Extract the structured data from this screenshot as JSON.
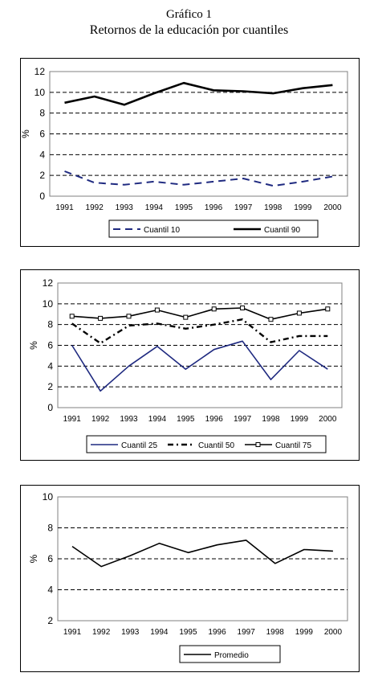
{
  "figure": {
    "label": "Gráfico 1",
    "title": "Retornos de la educación por cuantiles"
  },
  "chart_data": [
    {
      "type": "line",
      "x": [
        "1991",
        "1992",
        "1993",
        "1994",
        "1995",
        "1996",
        "1997",
        "1998",
        "1999",
        "2000"
      ],
      "ylabel": "%",
      "ylim": [
        0,
        12
      ],
      "yticks": [
        0,
        2,
        4,
        6,
        8,
        10,
        12
      ],
      "grid": "dashed horizontal",
      "legend_position": "bottom",
      "series": [
        {
          "name": "Cuantil 10",
          "style": "dashed",
          "color": "#1f2a80",
          "values": [
            2.4,
            1.3,
            1.1,
            1.4,
            1.1,
            1.4,
            1.7,
            1.0,
            1.4,
            1.9
          ]
        },
        {
          "name": "Cuantil 90",
          "style": "solid-thick",
          "color": "#000000",
          "values": [
            9.0,
            9.6,
            8.8,
            9.9,
            10.9,
            10.2,
            10.1,
            9.9,
            10.4,
            10.7
          ]
        }
      ]
    },
    {
      "type": "line",
      "x": [
        "1991",
        "1992",
        "1993",
        "1994",
        "1995",
        "1996",
        "1997",
        "1998",
        "1999",
        "2000"
      ],
      "ylabel": "%",
      "ylim": [
        0,
        12
      ],
      "yticks": [
        0,
        2,
        4,
        6,
        8,
        10,
        12
      ],
      "grid": "dashed horizontal",
      "legend_position": "bottom",
      "series": [
        {
          "name": "Cuantil 25",
          "style": "solid",
          "color": "#1f2a80",
          "values": [
            6.0,
            1.6,
            4.0,
            5.9,
            3.7,
            5.6,
            6.4,
            2.7,
            5.5,
            3.7
          ]
        },
        {
          "name": "Cuantil 50",
          "style": "dash-dot",
          "color": "#000000",
          "values": [
            8.1,
            6.2,
            7.9,
            8.1,
            7.6,
            8.0,
            8.5,
            6.3,
            6.9,
            6.9
          ]
        },
        {
          "name": "Cuantil 75",
          "style": "solid-square-markers",
          "color": "#000000",
          "values": [
            8.8,
            8.6,
            8.8,
            9.4,
            8.7,
            9.5,
            9.6,
            8.5,
            9.1,
            9.5
          ]
        }
      ]
    },
    {
      "type": "line",
      "x": [
        "1991",
        "1992",
        "1993",
        "1994",
        "1995",
        "1996",
        "1997",
        "1998",
        "1999",
        "2000"
      ],
      "ylabel": "%",
      "ylim": [
        2,
        10
      ],
      "yticks": [
        2,
        4,
        6,
        8,
        10
      ],
      "grid": "dashed horizontal",
      "legend_position": "bottom",
      "series": [
        {
          "name": "Promedio",
          "style": "solid",
          "color": "#000000",
          "values": [
            6.8,
            5.5,
            6.2,
            7.0,
            6.4,
            6.9,
            7.2,
            5.7,
            6.6,
            6.5
          ]
        }
      ]
    }
  ]
}
